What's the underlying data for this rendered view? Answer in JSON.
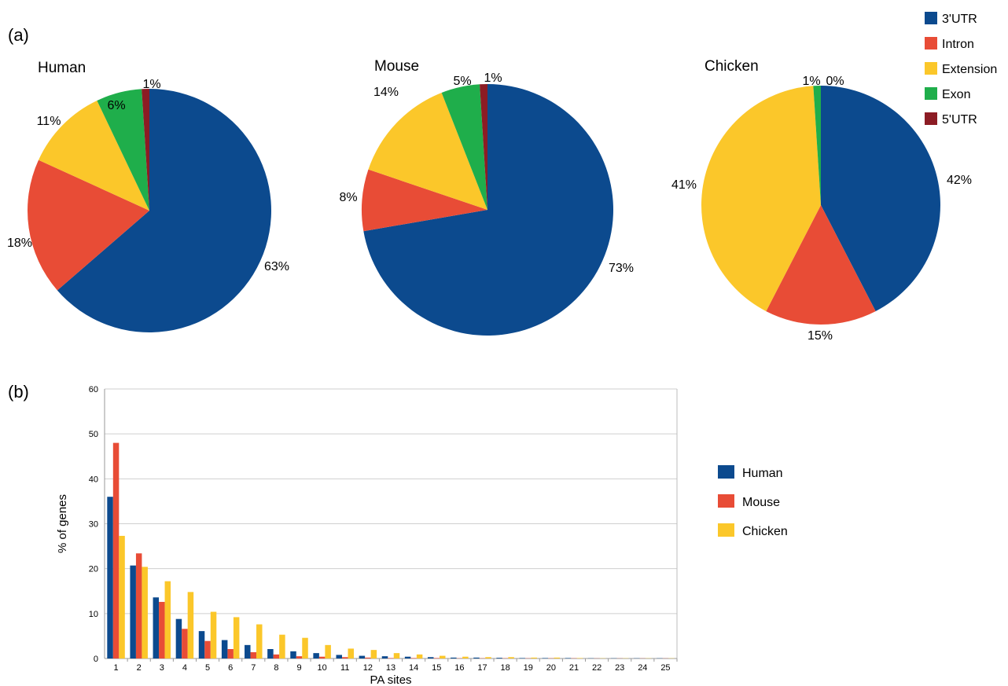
{
  "panel_labels": {
    "a": "(a)",
    "b": "(b)"
  },
  "colors": {
    "3'UTR": "#0c4a8e",
    "Intron": "#e84c36",
    "Extension": "#fbc72a",
    "Exon": "#1fae4b",
    "5'UTR": "#8c1c24",
    "Human": "#0c4a8e",
    "Mouse": "#e84c36",
    "Chicken": "#fbc72a",
    "grid": "#cfcfcf"
  },
  "pie_legend": [
    "3'UTR",
    "Intron",
    "Extension",
    "Exon",
    "5'UTR"
  ],
  "chart_data": [
    {
      "type": "pie",
      "title": "Human",
      "slices": [
        {
          "name": "3'UTR",
          "value": 63,
          "label": "63%"
        },
        {
          "name": "Intron",
          "value": 18,
          "label": "18%"
        },
        {
          "name": "Extension",
          "value": 11,
          "label": "11%"
        },
        {
          "name": "Exon",
          "value": 6,
          "label": "6%"
        },
        {
          "name": "5'UTR",
          "value": 1,
          "label": "1%"
        }
      ]
    },
    {
      "type": "pie",
      "title": "Mouse",
      "slices": [
        {
          "name": "3'UTR",
          "value": 73,
          "label": "73%"
        },
        {
          "name": "Intron",
          "value": 8,
          "label": "8%"
        },
        {
          "name": "Extension",
          "value": 14,
          "label": "14%"
        },
        {
          "name": "Exon",
          "value": 5,
          "label": "5%"
        },
        {
          "name": "5'UTR",
          "value": 1,
          "label": "1%"
        }
      ]
    },
    {
      "type": "pie",
      "title": "Chicken",
      "slices": [
        {
          "name": "3'UTR",
          "value": 42,
          "label": "42%"
        },
        {
          "name": "Intron",
          "value": 15,
          "label": "15%"
        },
        {
          "name": "Extension",
          "value": 41,
          "label": "41%"
        },
        {
          "name": "Exon",
          "value": 1,
          "label": "1%"
        },
        {
          "name": "5'UTR",
          "value": 0,
          "label": "0%"
        }
      ]
    },
    {
      "type": "bar",
      "xlabel": "PA sites",
      "ylabel": "% of genes",
      "ylim": [
        0,
        60
      ],
      "yticks": [
        0,
        10,
        20,
        30,
        40,
        50,
        60
      ],
      "grid": true,
      "legend": "right",
      "categories": [
        "1",
        "2",
        "3",
        "4",
        "5",
        "6",
        "7",
        "8",
        "9",
        "10",
        "11",
        "12",
        "13",
        "14",
        "15",
        "16",
        "17",
        "18",
        "19",
        "20",
        "21",
        "22",
        "23",
        "24",
        "25"
      ],
      "series": [
        {
          "name": "Human",
          "values": [
            36,
            20.7,
            13.6,
            8.8,
            6.1,
            4.1,
            3.0,
            2.1,
            1.6,
            1.2,
            0.8,
            0.6,
            0.5,
            0.4,
            0.3,
            0.2,
            0.2,
            0.15,
            0.1,
            0.1,
            0.1,
            0.05,
            0.05,
            0.05,
            0.05
          ]
        },
        {
          "name": "Mouse",
          "values": [
            48,
            23.4,
            12.6,
            6.6,
            3.9,
            2.1,
            1.4,
            0.9,
            0.5,
            0.4,
            0.3,
            0.2,
            0.1,
            0.1,
            0.1,
            0.05,
            0.05,
            0.05,
            0.05,
            0.05,
            0.05,
            0.03,
            0.03,
            0.03,
            0.03
          ]
        },
        {
          "name": "Chicken",
          "values": [
            27.3,
            20.4,
            17.2,
            14.8,
            10.4,
            9.2,
            7.6,
            5.3,
            4.6,
            3.0,
            2.2,
            1.9,
            1.2,
            0.9,
            0.6,
            0.4,
            0.3,
            0.3,
            0.2,
            0.2,
            0.1,
            0.05,
            0.05,
            0.05,
            0.05
          ]
        }
      ]
    }
  ]
}
